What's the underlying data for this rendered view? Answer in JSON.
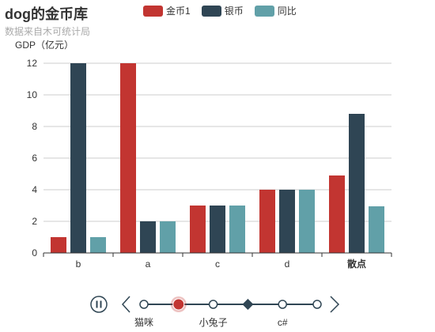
{
  "title": "dog的金币库",
  "subtitle": "数据来自木可统计局",
  "colors": {
    "axis": "#333333",
    "grid": "#cccccc",
    "timeline": "#304654",
    "timeline_active": "#c23531"
  },
  "chart_data": {
    "type": "bar",
    "title": "dog的金币库",
    "subtitle": "数据来自木可统计局",
    "ylabel": "GDP（亿元）",
    "xlabel": "",
    "ylim": [
      0,
      12
    ],
    "yticks": [
      0,
      2,
      4,
      6,
      8,
      10,
      12
    ],
    "categories": [
      "b",
      "a",
      "c",
      "d",
      "散点"
    ],
    "grid": "horizontal",
    "legend_position": "top-center",
    "series": [
      {
        "name": "金币1",
        "color": "#c23531",
        "values": [
          1,
          12,
          3,
          4,
          4.9
        ]
      },
      {
        "name": "银币",
        "color": "#2f4554",
        "values": [
          12,
          2,
          3,
          4,
          8.8
        ]
      },
      {
        "name": "同比",
        "color": "#61a0a8",
        "values": [
          1,
          2,
          3,
          4,
          2.95
        ]
      }
    ]
  },
  "timeline": {
    "play_icon": "pause-icon",
    "prev_icon": "chevron-left-icon",
    "next_icon": "chevron-right-icon",
    "labels": [
      "猫咪",
      "小兔子",
      "c#"
    ],
    "label_positions": [
      0,
      2,
      4
    ],
    "point_count": 6,
    "current_index": 1,
    "diamond_index": 3
  }
}
